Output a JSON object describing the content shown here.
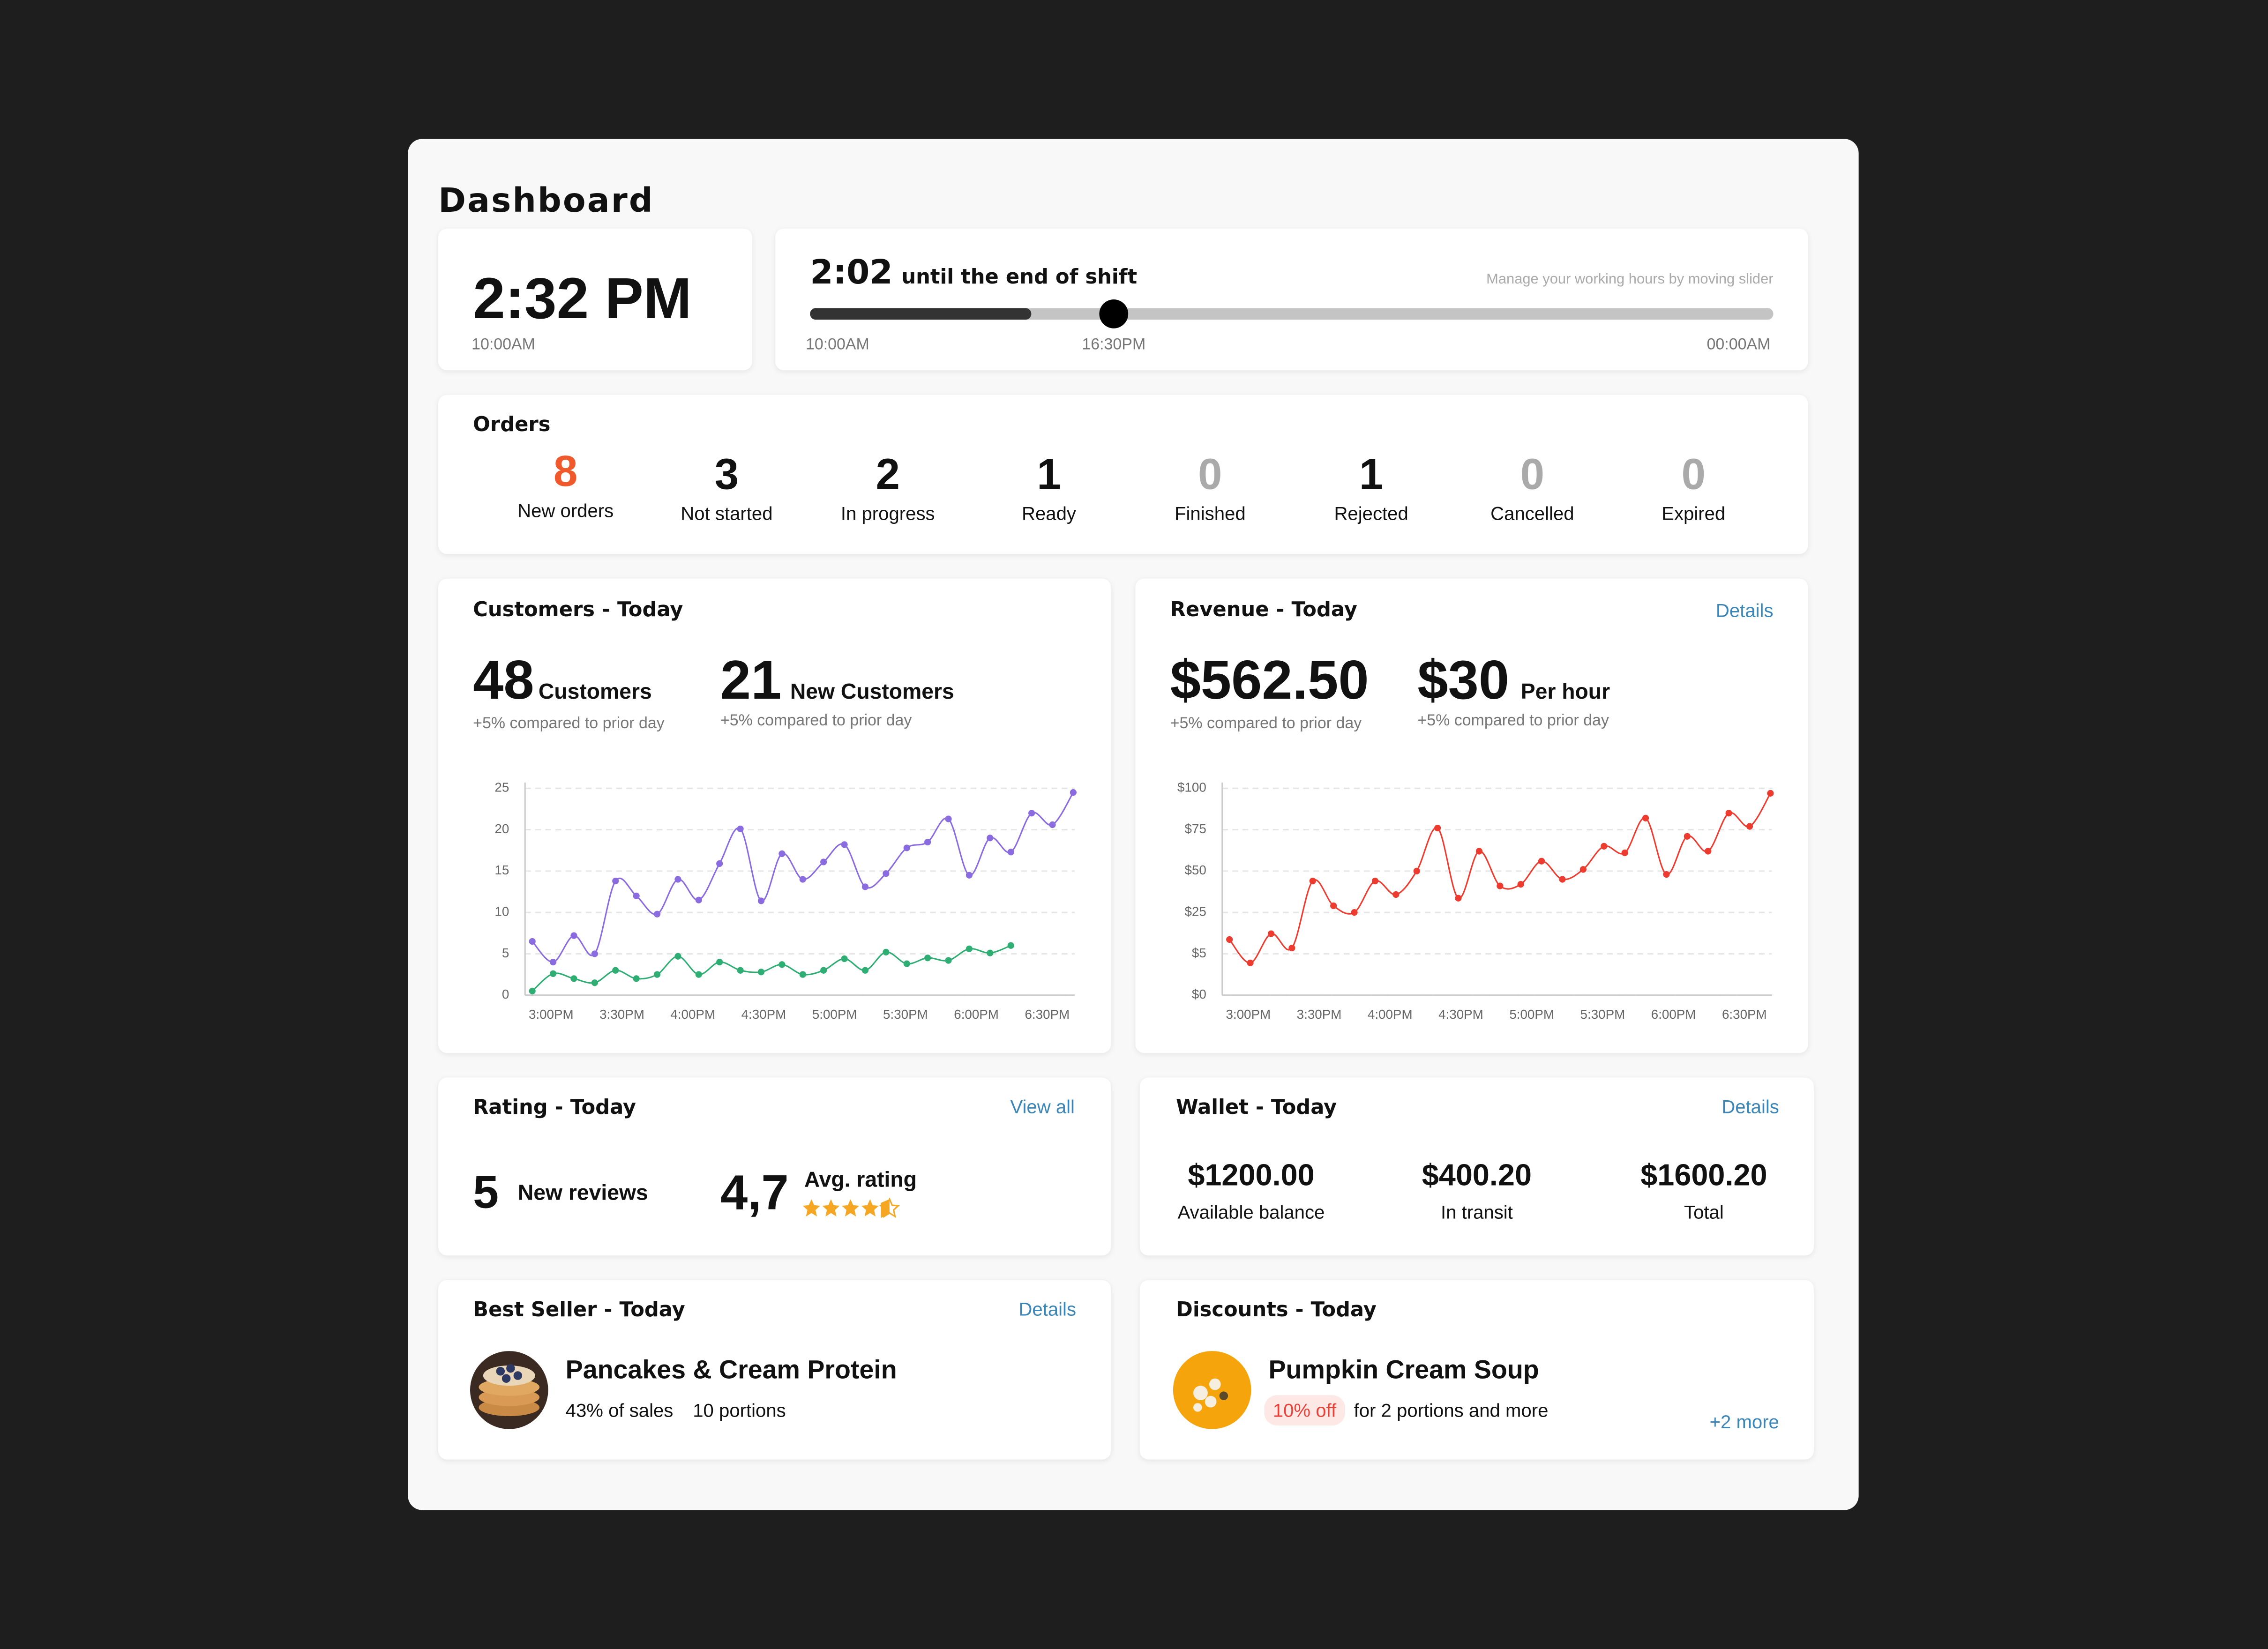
{
  "header": {
    "title": "Dashboard"
  },
  "clock": {
    "time": "2:32 PM",
    "start": "10:00AM"
  },
  "shift": {
    "remaining": "2:02",
    "label": "until the end of shift",
    "hint": "Manage your working hours by moving slider",
    "start": "10:00AM",
    "current": "16:30PM",
    "end": "00:00AM"
  },
  "orders": {
    "title": "Orders",
    "items": [
      {
        "count": 8,
        "label": "New orders"
      },
      {
        "count": 3,
        "label": "Not started"
      },
      {
        "count": 2,
        "label": "In progress"
      },
      {
        "count": 1,
        "label": "Ready"
      },
      {
        "count": 0,
        "label": "Finished"
      },
      {
        "count": 1,
        "label": "Rejected"
      },
      {
        "count": 0,
        "label": "Cancelled"
      },
      {
        "count": 0,
        "label": "Expired"
      }
    ]
  },
  "customers": {
    "title": "Customers - Today",
    "stats": [
      {
        "value": 48,
        "unit": "Customers",
        "note": "+5% compared to prior day"
      },
      {
        "value": 21,
        "unit": "New Customers",
        "note": "+5% compared to prior day"
      }
    ],
    "chart": {
      "type": "line",
      "ylim": [
        0,
        25
      ],
      "yticks": [
        0,
        5,
        10,
        15,
        20,
        25
      ],
      "xtick_labels": [
        "3:00PM",
        "3:30PM",
        "4:00PM",
        "4:30PM",
        "5:00PM",
        "5:30PM",
        "6:00PM",
        "6:30PM"
      ],
      "series": [
        {
          "color": "#8a6be0",
          "values": [
            6.5,
            4,
            7.2,
            5,
            13.8,
            12,
            9.8,
            14,
            11.5,
            15.9,
            20.1,
            11.4,
            17.1,
            14,
            16.1,
            18.2,
            13.1,
            14.7,
            17.8,
            18.5,
            21.3,
            14.5,
            19,
            17.3,
            22,
            20.6,
            24.5
          ]
        },
        {
          "color": "#2fae74",
          "values": [
            0.5,
            2.6,
            2,
            1.5,
            3,
            2,
            2.5,
            4.7,
            2.5,
            4,
            3,
            2.8,
            3.7,
            2.5,
            3,
            4.4,
            3,
            5.2,
            3.8,
            4.5,
            4.2,
            5.6,
            5.1,
            6,
            null,
            null,
            null
          ]
        }
      ]
    }
  },
  "revenue": {
    "title": "Revenue - Today",
    "link": "Details",
    "stats": [
      {
        "value": "$562.50",
        "note": "+5% compared to prior day"
      },
      {
        "value": "$30",
        "unit": "Per hour",
        "note": "+5% compared to prior day"
      }
    ],
    "chart": {
      "type": "line",
      "ylim": [
        0,
        100
      ],
      "yticks": [
        {
          "value": 0,
          "label": "$0"
        },
        {
          "value": 5,
          "label": "$5"
        },
        {
          "value": 25,
          "label": "$25"
        },
        {
          "value": 50,
          "label": "$50"
        },
        {
          "value": 75,
          "label": "$75"
        },
        {
          "value": 100,
          "label": "$100"
        }
      ],
      "xtick_labels": [
        "3:00PM",
        "3:30PM",
        "4:00PM",
        "4:30PM",
        "5:00PM",
        "5:30PM",
        "6:00PM",
        "6:30PM"
      ],
      "series": [
        {
          "color": "#ee3b2f",
          "values": [
            11.9,
            3.9,
            14.7,
            7.8,
            44,
            29,
            25,
            44,
            35.8,
            50,
            76,
            33.6,
            62,
            41,
            42,
            56,
            45,
            51,
            65,
            61,
            82,
            48,
            71,
            62,
            85,
            77,
            97
          ]
        }
      ]
    }
  },
  "rating": {
    "title": "Rating - Today",
    "link": "View all",
    "reviews": 5,
    "reviews_label": "New reviews",
    "average": "4,7",
    "average_label": "Avg. rating"
  },
  "wallet": {
    "title": "Wallet - Today",
    "link": "Details",
    "items": [
      {
        "amount": "$1200.00",
        "label": "Available balance"
      },
      {
        "amount": "$400.20",
        "label": "In transit"
      },
      {
        "amount": "$1600.20",
        "label": "Total"
      }
    ]
  },
  "best_seller": {
    "title": "Best Seller - Today",
    "link": "Details",
    "name": "Pancakes & Cream Protein",
    "share": "43% of sales",
    "portions": "10 portions"
  },
  "discounts": {
    "title": "Discounts - Today",
    "name": "Pumpkin Cream Soup",
    "badge": "10% off",
    "condition": "for 2 portions and more",
    "more": "+2 more"
  }
}
